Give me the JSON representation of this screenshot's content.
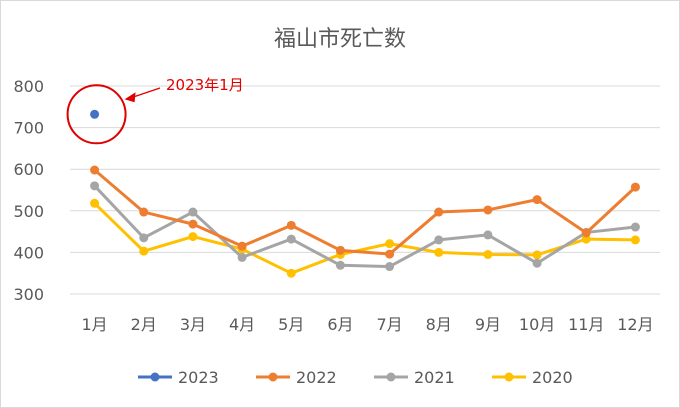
{
  "chart_data": {
    "type": "line",
    "title": "福山市死亡数",
    "categories": [
      "1月",
      "2月",
      "3月",
      "4月",
      "5月",
      "6月",
      "7月",
      "8月",
      "9月",
      "10月",
      "11月",
      "12月"
    ],
    "ylim": [
      300,
      800
    ],
    "yticks": [
      300,
      400,
      500,
      600,
      700,
      800
    ],
    "grid": true,
    "legend_position": "bottom",
    "series": [
      {
        "name": "2023",
        "color": "#4472C4",
        "values": [
          732,
          null,
          null,
          null,
          null,
          null,
          null,
          null,
          null,
          null,
          null,
          null
        ]
      },
      {
        "name": "2022",
        "color": "#ED7D31",
        "values": [
          598,
          497,
          468,
          415,
          465,
          405,
          396,
          497,
          502,
          527,
          447,
          557
        ]
      },
      {
        "name": "2021",
        "color": "#A5A5A5",
        "values": [
          560,
          435,
          497,
          388,
          432,
          369,
          366,
          430,
          442,
          374,
          448,
          461
        ]
      },
      {
        "name": "2020",
        "color": "#FFC000",
        "values": [
          518,
          403,
          438,
          408,
          350,
          395,
          421,
          400,
          395,
          394,
          432,
          430
        ]
      }
    ],
    "annotation": {
      "text": "2023年1月",
      "color": "#e00000"
    }
  }
}
